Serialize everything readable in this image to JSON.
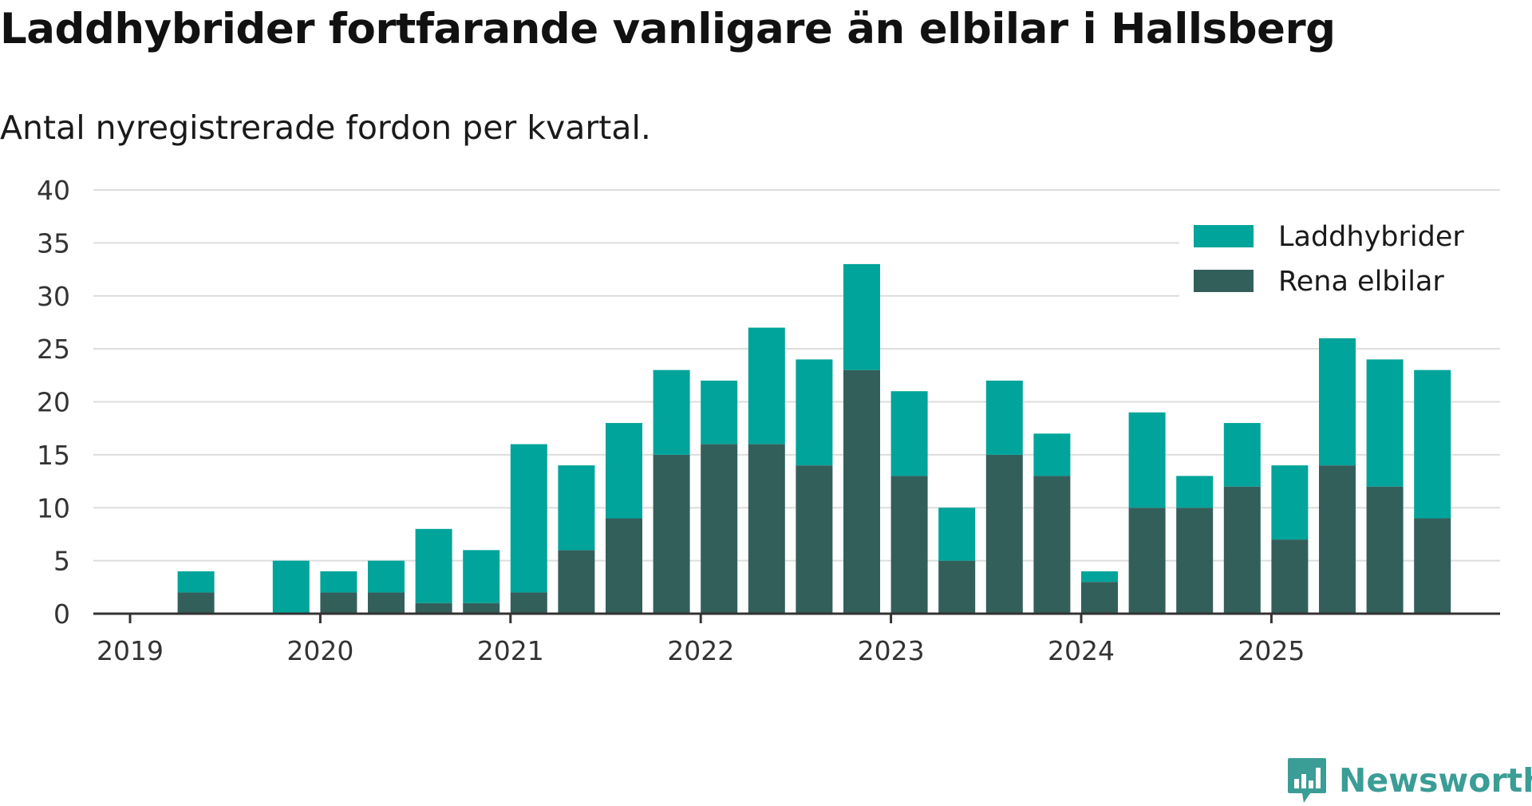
{
  "title": "Laddhybrider fortfarande vanligare än elbilar i Hallsberg",
  "subtitle": "Antal nyregistrerade fordon per kvartal.",
  "brand": "Newsworthy",
  "colors": {
    "laddhybrider": "#00a49a",
    "elbilar": "#335f5b",
    "grid": "#dddddd",
    "axis": "#333333",
    "brand": "#3a9d96"
  },
  "chart_data": {
    "type": "bar",
    "stacked": true,
    "title": "Laddhybrider fortfarande vanligare än elbilar i Hallsberg",
    "subtitle": "Antal nyregistrerade fordon per kvartal.",
    "xlabel": "",
    "ylabel": "",
    "ylim": [
      0,
      40
    ],
    "yticks": [
      0,
      5,
      10,
      15,
      20,
      25,
      30,
      35,
      40
    ],
    "xtick_labels": [
      "2019",
      "2020",
      "2021",
      "2022",
      "2023",
      "2024",
      "2025"
    ],
    "legend_position": "top-right",
    "categories": [
      "2019 Q1",
      "2019 Q2",
      "2019 Q3",
      "2019 Q4",
      "2020 Q1",
      "2020 Q2",
      "2020 Q3",
      "2020 Q4",
      "2021 Q1",
      "2021 Q2",
      "2021 Q3",
      "2021 Q4",
      "2022 Q1",
      "2022 Q2",
      "2022 Q3",
      "2022 Q4",
      "2023 Q1",
      "2023 Q2",
      "2023 Q3",
      "2023 Q4",
      "2024 Q1",
      "2024 Q2",
      "2024 Q3",
      "2024 Q4",
      "2025 Q1",
      "2025 Q2",
      "2025 Q3",
      "2025 Q4"
    ],
    "series": [
      {
        "name": "Rena elbilar",
        "color_key": "elbilar",
        "values": [
          0,
          2,
          0,
          0,
          2,
          2,
          1,
          1,
          2,
          6,
          9,
          15,
          16,
          16,
          14,
          23,
          13,
          5,
          15,
          13,
          3,
          10,
          10,
          12,
          7,
          14,
          12,
          9
        ]
      },
      {
        "name": "Laddhybrider",
        "color_key": "laddhybrider",
        "values": [
          0,
          2,
          0,
          5,
          2,
          3,
          7,
          5,
          14,
          8,
          9,
          8,
          6,
          11,
          10,
          10,
          8,
          5,
          7,
          4,
          1,
          9,
          3,
          6,
          7,
          12,
          12,
          14
        ]
      }
    ],
    "legend": [
      "Laddhybrider",
      "Rena elbilar"
    ]
  }
}
